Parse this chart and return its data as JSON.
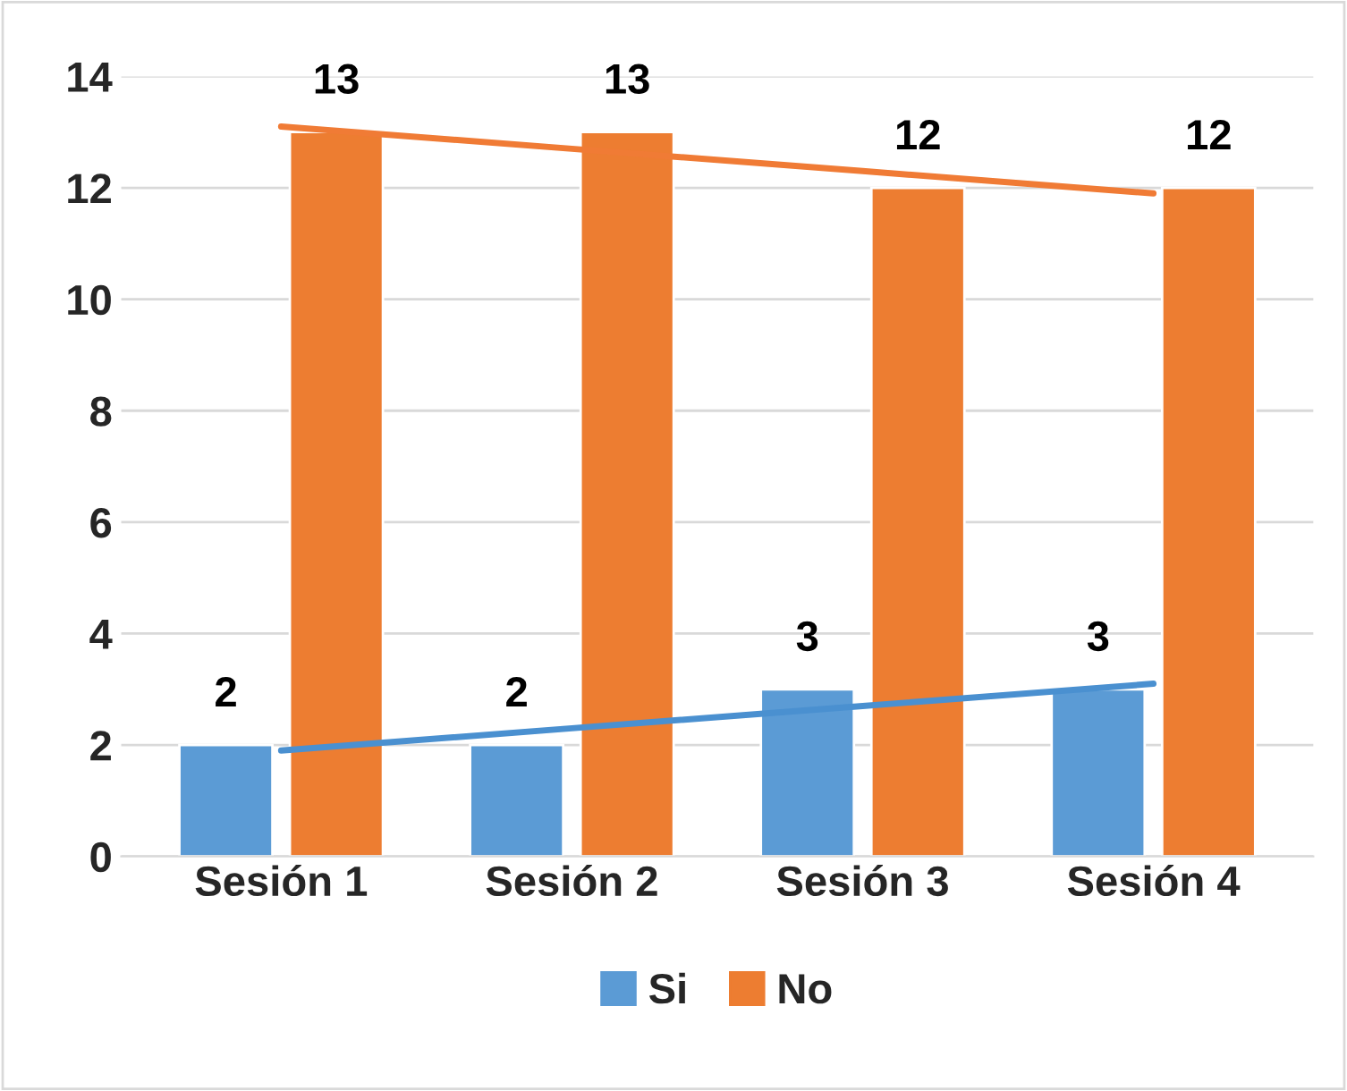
{
  "chart_data": {
    "type": "bar",
    "categories": [
      "Sesión 1",
      "Sesión 2",
      "Sesión 3",
      "Sesión 4"
    ],
    "series": [
      {
        "name": "Si",
        "color": "#5b9bd5",
        "values": [
          2,
          2,
          3,
          3
        ],
        "value_labels": [
          "2",
          "2",
          "3",
          "3"
        ]
      },
      {
        "name": "No",
        "color": "#ed7d31",
        "values": [
          13,
          13,
          12,
          12
        ],
        "value_labels": [
          "13",
          "13",
          "12",
          "12"
        ]
      },
      {
        "type": "line",
        "color": "#4a90d0",
        "values": [
          1.9,
          2.3,
          2.7,
          3.1
        ]
      },
      {
        "type": "line",
        "color": "#f07b35",
        "values": [
          13.1,
          12.7,
          12.3,
          11.9
        ]
      }
    ],
    "ylim": [
      0,
      14
    ],
    "yticks": [
      0,
      2,
      4,
      6,
      8,
      10,
      12,
      14
    ],
    "grid": "y",
    "legend": "bottom"
  }
}
